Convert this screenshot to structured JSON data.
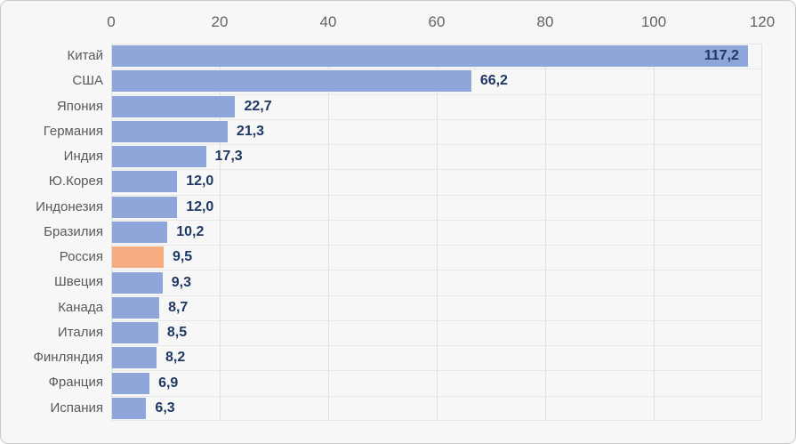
{
  "chart_data": {
    "type": "bar",
    "orientation": "horizontal",
    "title": "",
    "xlabel": "",
    "ylabel": "",
    "categories": [
      "Китай",
      "США",
      "Япония",
      "Германия",
      "Индия",
      "Ю.Корея",
      "Индонезия",
      "Бразилия",
      "Россия",
      "Швеция",
      "Канада",
      "Италия",
      "Финляндия",
      "Франция",
      "Испания"
    ],
    "values": [
      117.2,
      66.2,
      22.7,
      21.3,
      17.3,
      12.0,
      12.0,
      10.2,
      9.5,
      9.3,
      8.7,
      8.5,
      8.2,
      6.9,
      6.3
    ],
    "value_labels": [
      "117,2",
      "66,2",
      "22,7",
      "21,3",
      "17,3",
      "12,0",
      "12,0",
      "10,2",
      "9,5",
      "9,3",
      "8,7",
      "8,5",
      "8,2",
      "6,9",
      "6,3"
    ],
    "x_ticks": [
      "0",
      "20",
      "40",
      "60",
      "80",
      "100",
      "120"
    ],
    "x_tick_values": [
      0,
      20,
      40,
      60,
      80,
      100,
      120
    ],
    "xlim": [
      0,
      120
    ],
    "grid": true,
    "legend": false,
    "axis_position": "top",
    "highlight_category": "Россия",
    "highlight_index": 8,
    "colors": {
      "bar": "#8FA6DA",
      "highlight_bar": "#F5AC80",
      "value_text": "#1F3864",
      "axis_text": "#636363",
      "category_text": "#595959",
      "gridline": "#e0e0e0",
      "chart_background": "#f7f7f7",
      "chart_border": "#c9c9c9"
    }
  }
}
